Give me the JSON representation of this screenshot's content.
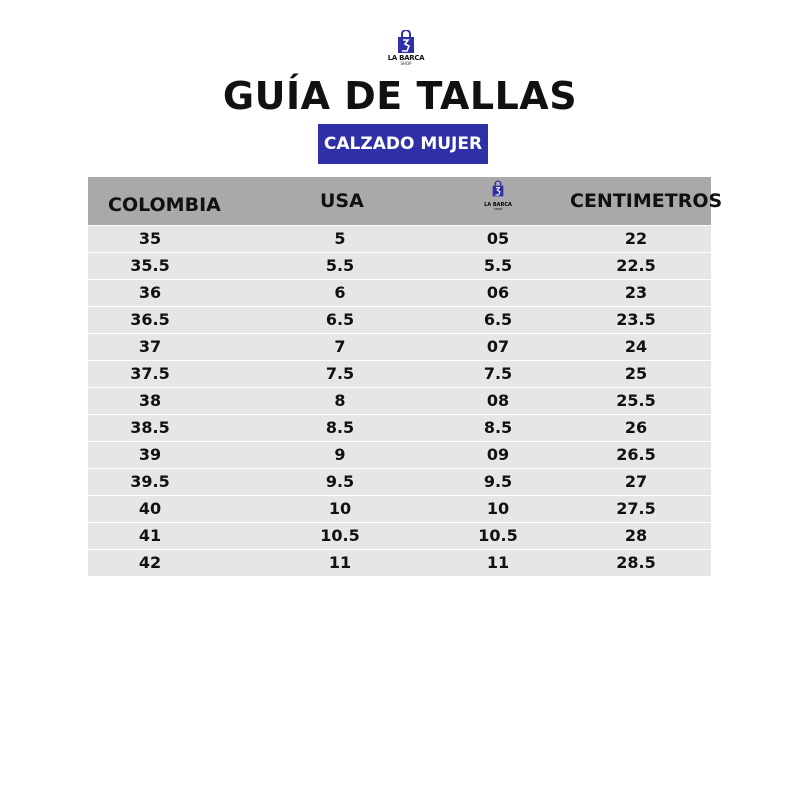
{
  "logo": {
    "text": "LA BARCA",
    "sub": "SHOP",
    "color": "#2f30a8"
  },
  "title": "GUÍA DE TALLAS",
  "badge": {
    "label": "CALZADO MUJER",
    "color": "#2f30a8"
  },
  "table": {
    "headers": [
      "COLOMBIA",
      "USA",
      "LA BARCA",
      "CENTIMETROS"
    ],
    "header_logo_sub": "SHOP",
    "rows": [
      [
        "35",
        "5",
        "05",
        "22"
      ],
      [
        "35.5",
        "5.5",
        "5.5",
        "22.5"
      ],
      [
        "36",
        "6",
        "06",
        "23"
      ],
      [
        "36.5",
        "6.5",
        "6.5",
        "23.5"
      ],
      [
        "37",
        "7",
        "07",
        "24"
      ],
      [
        "37.5",
        "7.5",
        "7.5",
        "25"
      ],
      [
        "38",
        "8",
        "08",
        "25.5"
      ],
      [
        "38.5",
        "8.5",
        "8.5",
        "26"
      ],
      [
        "39",
        "9",
        "09",
        "26.5"
      ],
      [
        "39.5",
        "9.5",
        "9.5",
        "27"
      ],
      [
        "40",
        "10",
        "10",
        "27.5"
      ],
      [
        "41",
        "10.5",
        "10.5",
        "28"
      ],
      [
        "42",
        "11",
        "11",
        "28.5"
      ]
    ]
  }
}
